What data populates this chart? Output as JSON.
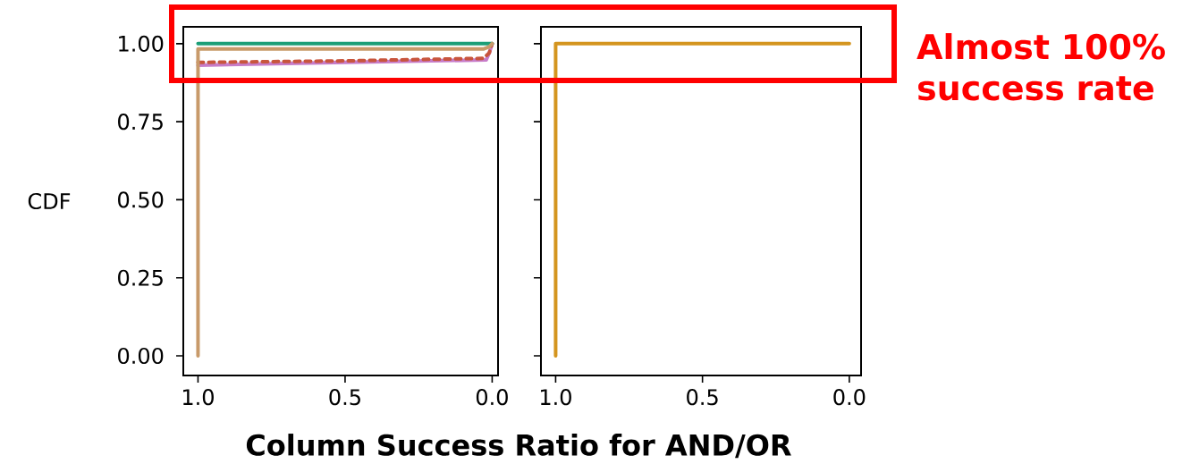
{
  "chart_data": [
    {
      "type": "line",
      "ylabel": "CDF",
      "xlim": [
        1.05,
        -0.02
      ],
      "ylim": [
        -0.063,
        1.054
      ],
      "xticks": [
        {
          "value": 1,
          "label": "1.0"
        },
        {
          "value": 0.5,
          "label": "0.5"
        },
        {
          "value": 0,
          "label": "0.0"
        }
      ],
      "yticks": [
        {
          "value": 0,
          "label": "0.00"
        },
        {
          "value": 0.25,
          "label": "0.25"
        },
        {
          "value": 0.5,
          "label": "0.50"
        },
        {
          "value": 0.75,
          "label": "0.75"
        },
        {
          "value": 1,
          "label": "1.00"
        }
      ],
      "series": [
        {
          "color": "#c77cc9",
          "x": [
            1,
            0.5,
            0.02,
            0.01,
            0
          ],
          "values": [
            0.931,
            0.94,
            0.948,
            0.97,
            1.0
          ]
        },
        {
          "color": "#c8553d",
          "line_style": "dashed",
          "x": [
            1,
            0.5,
            0.03,
            0.01,
            0
          ],
          "values": [
            0.94,
            0.945,
            0.953,
            0.97,
            1.0
          ]
        },
        {
          "color": "#1b9e77",
          "x": [
            1,
            0.03,
            0
          ],
          "values": [
            1.0,
            1.0,
            1.0
          ]
        },
        {
          "color": "#c89a6a",
          "x": [
            1,
            1,
            0.03,
            0.01,
            0
          ],
          "values": [
            0,
            0.983,
            0.983,
            0.99,
            1.0
          ]
        }
      ]
    },
    {
      "type": "line",
      "xlabel": "Column Success Ratio for AND/OR",
      "annotations": [
        "Almost 100% success rate"
      ],
      "tick_labels": "x",
      "xlim": [
        1.05,
        -0.04
      ],
      "ylim": [
        -0.063,
        1.054
      ],
      "xticks": [
        {
          "value": 1,
          "label": "1.0"
        },
        {
          "value": 0.5,
          "label": "0.5"
        },
        {
          "value": 0,
          "label": "0.0"
        }
      ],
      "yticks": [
        0,
        0.25,
        0.5,
        0.75,
        1
      ],
      "series": [
        {
          "color": "#d4951f",
          "x": [
            1,
            1,
            0
          ],
          "values": [
            0,
            1.0,
            1.0
          ]
        }
      ]
    }
  ]
}
